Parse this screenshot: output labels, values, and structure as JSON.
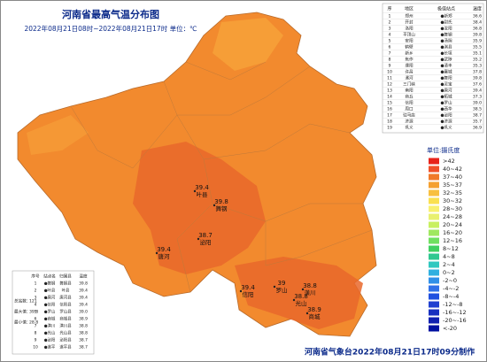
{
  "header": {
    "title": "河南省最高气温分布图",
    "subtitle": "2022年08月21日08时~2022年08月21日17时 单位：℃"
  },
  "stations": [
    {
      "value": 39.4,
      "name": "叶县"
    },
    {
      "value": 39.8,
      "name": "舞钢"
    },
    {
      "value": 39.4,
      "name": "唐河"
    },
    {
      "value": 38.7,
      "name": "泌阳"
    },
    {
      "value": 39.4,
      "name": "信阳"
    },
    {
      "value": 39.0,
      "name": "罗山"
    },
    {
      "value": 38.8,
      "name": "光山"
    },
    {
      "value": 38.8,
      "name": "潢川"
    },
    {
      "value": 38.9,
      "name": "商城"
    }
  ],
  "table": {
    "columns": [
      "序",
      "地区",
      "极值站点",
      "温度"
    ],
    "rows": [
      [
        "1",
        "郑州",
        "●新郑",
        "36.6"
      ],
      [
        "2",
        "开封",
        "●尉氏",
        "38.4"
      ],
      [
        "3",
        "洛阳",
        "●汝阳",
        "36.8"
      ],
      [
        "4",
        "平顶山",
        "●舞钢",
        "39.8"
      ],
      [
        "5",
        "安阳",
        "●汤阴",
        "35.9"
      ],
      [
        "6",
        "鹤壁",
        "●淇县",
        "35.5"
      ],
      [
        "7",
        "新乡",
        "●长垣",
        "35.1"
      ],
      [
        "8",
        "焦作",
        "●武陟",
        "35.2"
      ],
      [
        "9",
        "濮阳",
        "●清丰",
        "35.3"
      ],
      [
        "10",
        "许昌",
        "●襄城",
        "37.8"
      ],
      [
        "11",
        "漯河",
        "●舞阳",
        "39.8"
      ],
      [
        "12",
        "三门峡",
        "●灵宝",
        "37.6"
      ],
      [
        "13",
        "南阳",
        "●唐河",
        "39.4"
      ],
      [
        "14",
        "商丘",
        "●柘城",
        "37.3"
      ],
      [
        "15",
        "信阳",
        "●罗山",
        "39.0"
      ],
      [
        "16",
        "周口",
        "●西华",
        "38.5"
      ],
      [
        "17",
        "驻马店",
        "●泌阳",
        "38.7"
      ],
      [
        "18",
        "济源",
        "●济源",
        "35.7"
      ],
      [
        "19",
        "巩义",
        "●巩义",
        "36.9"
      ]
    ]
  },
  "summary": {
    "columns": [
      "序号",
      "站点名",
      "归属县",
      "温度"
    ],
    "rows": [
      [
        "1",
        "●舞钢",
        "舞钢县",
        "39.8"
      ],
      [
        "2",
        "●叶县",
        "叶县",
        "39.4"
      ],
      [
        "3",
        "●唐河",
        "唐河县",
        "39.4"
      ],
      [
        "4",
        "●信阳",
        "信阳县",
        "39.4"
      ],
      [
        "5",
        "●罗山",
        "罗山县",
        "39.0"
      ],
      [
        "6",
        "●商城",
        "商城县",
        "38.9"
      ],
      [
        "7",
        "●潢川",
        "潢川县",
        "38.8"
      ],
      [
        "8",
        "●光山",
        "光山县",
        "38.8"
      ],
      [
        "9",
        "●泌阳",
        "泌阳县",
        "38.7"
      ],
      [
        "10",
        "●遂平",
        "遂平县",
        "38.7"
      ]
    ],
    "stats": [
      {
        "label": "总站数：",
        "value": 121
      },
      {
        "label": "最大值：",
        "value": 39.8
      },
      {
        "label": "最小值：",
        "value": 28.8
      }
    ]
  },
  "legend": {
    "title": "单位:摄氏度",
    "items": [
      {
        "label": ">42",
        "color": "#e8231b"
      },
      {
        "label": "40~42",
        "color": "#f0502a"
      },
      {
        "label": "37~40",
        "color": "#f07a2a"
      },
      {
        "label": "35~37",
        "color": "#f5a030"
      },
      {
        "label": "32~35",
        "color": "#f8c040"
      },
      {
        "label": "30~32",
        "color": "#fae050"
      },
      {
        "label": "28~30",
        "color": "#f8f070"
      },
      {
        "label": "24~28",
        "color": "#e8f070"
      },
      {
        "label": "20~24",
        "color": "#c8f060"
      },
      {
        "label": "16~20",
        "color": "#a0e860"
      },
      {
        "label": "12~16",
        "color": "#70e060"
      },
      {
        "label": "8~12",
        "color": "#40d060"
      },
      {
        "label": "4~8",
        "color": "#30c890"
      },
      {
        "label": "2~4",
        "color": "#30c8c0"
      },
      {
        "label": "0~2",
        "color": "#30b0e0"
      },
      {
        "label": "-2~0",
        "color": "#3090e8"
      },
      {
        "label": "-4~-2",
        "color": "#3070e8"
      },
      {
        "label": "-8~-4",
        "color": "#2050e0"
      },
      {
        "label": "-12~-8",
        "color": "#2040d0"
      },
      {
        "label": "-16~-12",
        "color": "#1830c0"
      },
      {
        "label": "-20~-16",
        "color": "#1020b0"
      },
      {
        "label": "<-20",
        "color": "#0010a0"
      }
    ]
  },
  "footer": "河南省气象台2022年08月21日17时09分制作"
}
